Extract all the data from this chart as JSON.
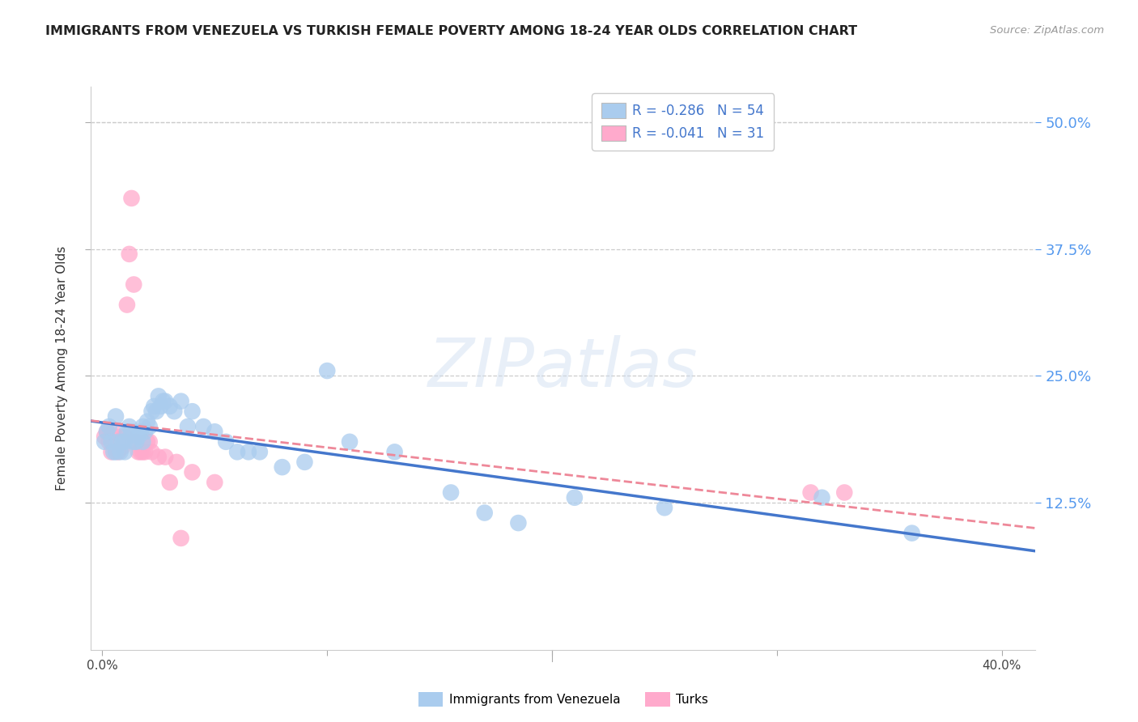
{
  "title": "IMMIGRANTS FROM VENEZUELA VS TURKISH FEMALE POVERTY AMONG 18-24 YEAR OLDS CORRELATION CHART",
  "source": "Source: ZipAtlas.com",
  "ylabel_left": "Female Poverty Among 18-24 Year Olds",
  "right_ytick_labels": [
    "50.0%",
    "37.5%",
    "25.0%",
    "12.5%"
  ],
  "right_ytick_values": [
    0.5,
    0.375,
    0.25,
    0.125
  ],
  "xtick_labels": [
    "0.0%",
    "",
    "",
    "",
    "40.0%"
  ],
  "xtick_values": [
    0.0,
    0.1,
    0.2,
    0.3,
    0.4
  ],
  "xlim": [
    -0.005,
    0.415
  ],
  "ylim": [
    -0.02,
    0.535
  ],
  "top_gridline_y": 0.5,
  "watermark": "ZIPatlas",
  "legend_r1": "R = -0.286",
  "legend_n1": "N = 54",
  "legend_r2": "R = -0.041",
  "legend_n2": "N = 31",
  "blue_scatter_color": "#AACCEE",
  "pink_scatter_color": "#FFAACC",
  "blue_line_color": "#4477CC",
  "pink_line_color": "#EE8899",
  "right_axis_color": "#5599EE",
  "title_color": "#222222",
  "source_color": "#999999",
  "grid_color": "#CCCCCC",
  "background_color": "#FFFFFF",
  "legend_text_color": "#4477CC",
  "venezuela_x": [
    0.001,
    0.002,
    0.003,
    0.004,
    0.005,
    0.006,
    0.006,
    0.007,
    0.008,
    0.009,
    0.01,
    0.01,
    0.011,
    0.012,
    0.013,
    0.014,
    0.015,
    0.016,
    0.017,
    0.018,
    0.018,
    0.019,
    0.02,
    0.021,
    0.022,
    0.023,
    0.024,
    0.025,
    0.026,
    0.027,
    0.028,
    0.03,
    0.032,
    0.035,
    0.038,
    0.04,
    0.045,
    0.05,
    0.055,
    0.06,
    0.065,
    0.07,
    0.08,
    0.09,
    0.1,
    0.11,
    0.13,
    0.155,
    0.17,
    0.185,
    0.21,
    0.25,
    0.32,
    0.36
  ],
  "venezuela_y": [
    0.185,
    0.195,
    0.2,
    0.185,
    0.175,
    0.21,
    0.175,
    0.185,
    0.175,
    0.185,
    0.185,
    0.175,
    0.195,
    0.2,
    0.195,
    0.185,
    0.185,
    0.19,
    0.195,
    0.2,
    0.185,
    0.195,
    0.205,
    0.2,
    0.215,
    0.22,
    0.215,
    0.23,
    0.22,
    0.225,
    0.225,
    0.22,
    0.215,
    0.225,
    0.2,
    0.215,
    0.2,
    0.195,
    0.185,
    0.175,
    0.175,
    0.175,
    0.16,
    0.165,
    0.255,
    0.185,
    0.175,
    0.135,
    0.115,
    0.105,
    0.13,
    0.12,
    0.13,
    0.095
  ],
  "turks_x": [
    0.001,
    0.002,
    0.003,
    0.004,
    0.005,
    0.006,
    0.007,
    0.008,
    0.009,
    0.01,
    0.011,
    0.012,
    0.013,
    0.014,
    0.015,
    0.016,
    0.017,
    0.018,
    0.019,
    0.02,
    0.021,
    0.022,
    0.025,
    0.028,
    0.03,
    0.033,
    0.035,
    0.04,
    0.05,
    0.315,
    0.33
  ],
  "turks_y": [
    0.19,
    0.195,
    0.185,
    0.175,
    0.195,
    0.19,
    0.175,
    0.185,
    0.18,
    0.19,
    0.32,
    0.37,
    0.425,
    0.34,
    0.185,
    0.175,
    0.175,
    0.175,
    0.175,
    0.185,
    0.185,
    0.175,
    0.17,
    0.17,
    0.145,
    0.165,
    0.09,
    0.155,
    0.145,
    0.135,
    0.135
  ]
}
